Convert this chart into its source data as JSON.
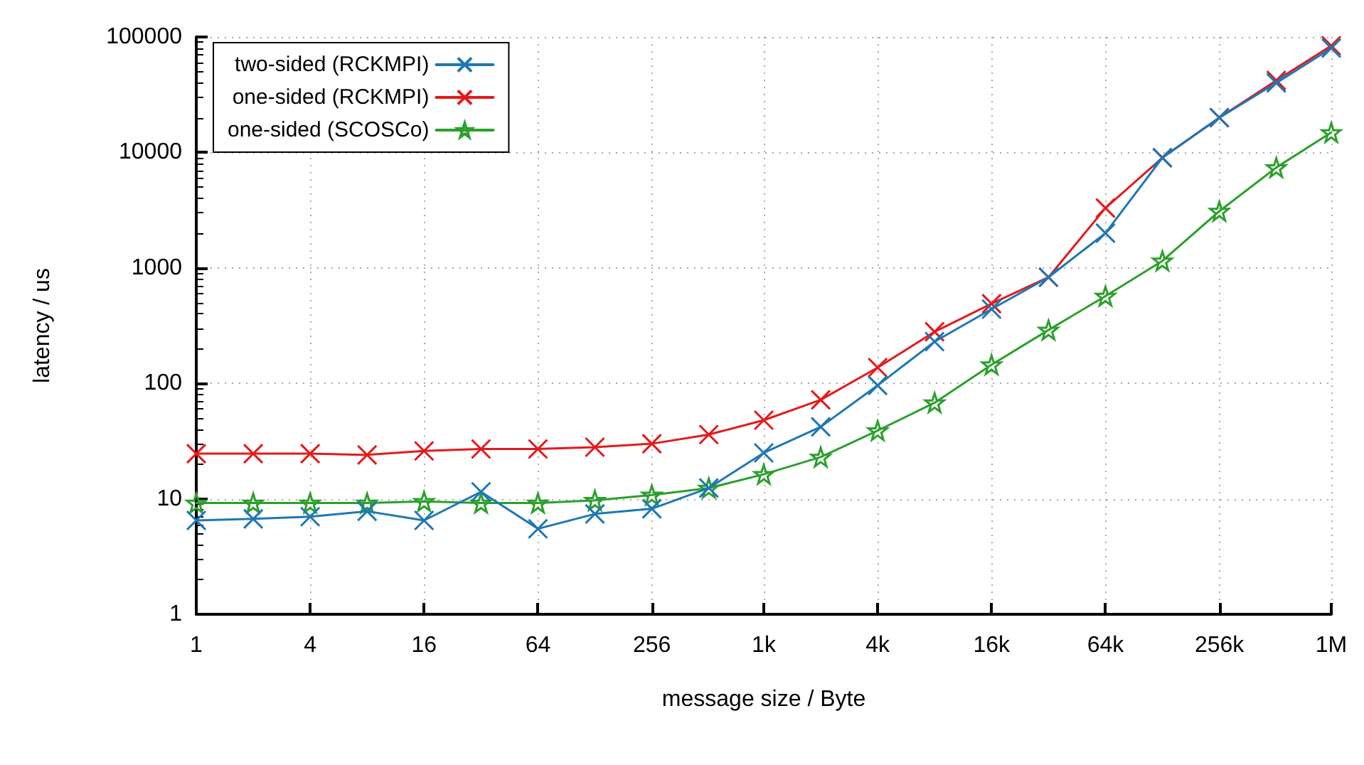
{
  "chart_data": {
    "type": "line",
    "xlabel": "message size / Byte",
    "ylabel": "latency / us",
    "log": "xy",
    "grid": true,
    "legend": "top left",
    "line_style": "solid",
    "x": [
      1,
      2,
      4,
      8,
      16,
      32,
      64,
      128,
      256,
      512,
      1000,
      2000,
      4000,
      8000,
      16000,
      32000,
      64000,
      128000,
      256000,
      512000,
      1000000
    ],
    "xlim": [
      1,
      1000000
    ],
    "xticks": [
      1,
      4,
      16,
      64,
      256,
      {
        "value": 1000,
        "label": "1k"
      },
      {
        "value": 4000,
        "label": "4k"
      },
      {
        "value": 16000,
        "label": "16k"
      },
      {
        "value": 64000,
        "label": "64k"
      },
      {
        "value": 256000,
        "label": "256k"
      },
      {
        "value": 1000000,
        "label": "1M"
      }
    ],
    "ylim": [
      1,
      100000
    ],
    "yticks": [
      1,
      10,
      100,
      1000,
      10000,
      100000
    ],
    "series": [
      {
        "name": "two-sided (RCKMPI)",
        "color": "#1f77b4",
        "marker": "cross",
        "values": [
          6.5,
          6.7,
          7.0,
          7.8,
          6.5,
          11.5,
          5.5,
          7.4,
          8.2,
          12.4,
          25,
          42,
          96,
          230,
          440,
          830,
          2000,
          9000,
          20000,
          40000,
          80000
        ]
      },
      {
        "name": "one-sided (RCKMPI)",
        "color": "#e41a1c",
        "marker": "cross",
        "values": [
          24.6,
          24.6,
          24.6,
          24,
          26,
          27,
          27,
          28,
          30,
          36,
          48,
          72,
          137,
          280,
          490,
          830,
          3300,
          9000,
          20000,
          42000,
          84000
        ]
      },
      {
        "name": "one-sided (SCOSCo)",
        "color": "#2ca02c",
        "marker": "star",
        "values": [
          9.2,
          9.2,
          9.2,
          9.2,
          9.5,
          9.2,
          9.2,
          9.7,
          10.8,
          12.4,
          16.3,
          23,
          39,
          68,
          145,
          290,
          570,
          1150,
          3100,
          7400,
          14900
        ]
      }
    ]
  }
}
